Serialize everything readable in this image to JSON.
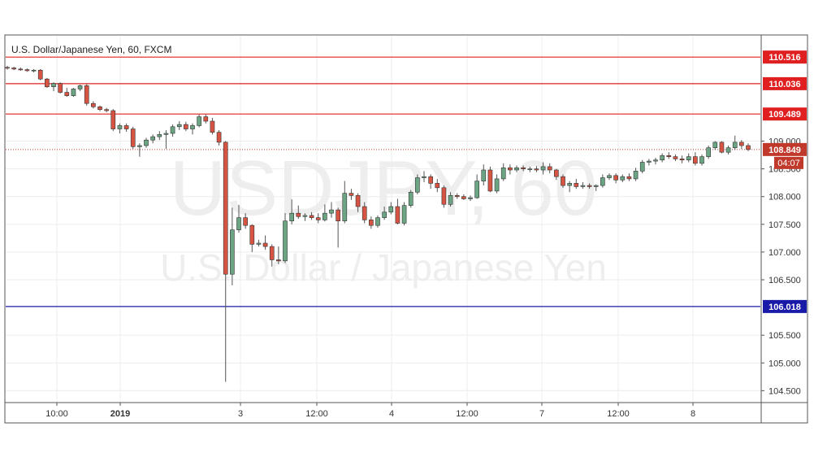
{
  "header": {
    "title": "U.S. Dollar/Japanese Yen, 60, FXCM"
  },
  "watermark": {
    "symbol": "USDJPY, 60",
    "name": "U.S. Dollar / Japanese Yen"
  },
  "colors": {
    "up_candle": "#6ba583",
    "down_candle": "#d75442",
    "wick": "#555555",
    "resistance_line": "#e02020",
    "support_line": "#1a1aa8",
    "price_line": "#c0392b",
    "grid": "#ececec"
  },
  "price_scale": {
    "ticks": [
      "109.000",
      "108.500",
      "108.000",
      "107.500",
      "107.000",
      "106.500",
      "105.500",
      "105.000",
      "104.500"
    ]
  },
  "time_scale": {
    "labels": [
      "10:00",
      "2019",
      "3",
      "12:00",
      "4",
      "12:00",
      "7",
      "12:00",
      "8"
    ]
  },
  "price_tags": {
    "levels": [
      "110.516",
      "110.036",
      "109.489",
      "106.018"
    ],
    "last_price": "108.849",
    "countdown": "04:07"
  },
  "chart_data": {
    "type": "candlestick",
    "title": "U.S. Dollar/Japanese Yen, 60, FXCM",
    "symbol": "USDJPY",
    "timeframe": "60",
    "ylim": [
      104.3,
      110.9
    ],
    "x_ticks": [
      "10:00",
      "2019",
      "3",
      "12:00",
      "4",
      "12:00",
      "7",
      "12:00",
      "8"
    ],
    "y_ticks": [
      109.0,
      108.5,
      108.0,
      107.5,
      107.0,
      106.5,
      105.5,
      105.0,
      104.5
    ],
    "horizontal_levels": [
      {
        "value": 110.516,
        "kind": "resistance"
      },
      {
        "value": 110.036,
        "kind": "resistance"
      },
      {
        "value": 109.489,
        "kind": "resistance"
      },
      {
        "value": 106.018,
        "kind": "support"
      }
    ],
    "last_price": 108.849,
    "candles": [
      [
        110.33,
        110.36,
        110.29,
        110.32
      ],
      [
        110.32,
        110.34,
        110.28,
        110.3
      ],
      [
        110.3,
        110.33,
        110.27,
        110.29
      ],
      [
        110.29,
        110.31,
        110.25,
        110.27
      ],
      [
        110.27,
        110.3,
        110.24,
        110.28
      ],
      [
        110.28,
        110.3,
        110.1,
        110.12
      ],
      [
        110.12,
        110.14,
        109.96,
        109.98
      ],
      [
        109.98,
        110.06,
        109.9,
        110.04
      ],
      [
        110.04,
        110.06,
        109.86,
        109.88
      ],
      [
        109.88,
        109.96,
        109.8,
        109.82
      ],
      [
        109.82,
        109.96,
        109.8,
        109.94
      ],
      [
        109.94,
        110.02,
        109.9,
        110.0
      ],
      [
        110.0,
        110.03,
        109.64,
        109.68
      ],
      [
        109.68,
        109.72,
        109.59,
        109.62
      ],
      [
        109.62,
        109.64,
        109.54,
        109.57
      ],
      [
        109.57,
        109.6,
        109.52,
        109.55
      ],
      [
        109.55,
        109.58,
        109.18,
        109.22
      ],
      [
        109.22,
        109.32,
        109.14,
        109.28
      ],
      [
        109.28,
        109.32,
        109.17,
        109.22
      ],
      [
        109.22,
        109.26,
        108.86,
        108.9
      ],
      [
        108.9,
        108.96,
        108.72,
        108.92
      ],
      [
        108.92,
        109.06,
        108.88,
        109.02
      ],
      [
        109.02,
        109.12,
        108.96,
        109.08
      ],
      [
        109.08,
        109.18,
        109.02,
        109.12
      ],
      [
        109.12,
        109.2,
        108.86,
        109.14
      ],
      [
        109.14,
        109.3,
        109.08,
        109.26
      ],
      [
        109.26,
        109.36,
        109.2,
        109.3
      ],
      [
        109.3,
        109.35,
        109.18,
        109.22
      ],
      [
        109.22,
        109.32,
        109.12,
        109.28
      ],
      [
        109.28,
        109.48,
        109.25,
        109.44
      ],
      [
        109.44,
        109.48,
        109.32,
        109.36
      ],
      [
        109.36,
        109.42,
        109.12,
        109.16
      ],
      [
        109.16,
        109.2,
        108.92,
        108.98
      ],
      [
        108.98,
        109.0,
        104.66,
        106.6
      ],
      [
        106.6,
        107.8,
        106.4,
        107.4
      ],
      [
        107.4,
        107.85,
        107.35,
        107.62
      ],
      [
        107.62,
        107.7,
        107.42,
        107.48
      ],
      [
        107.48,
        107.5,
        107.0,
        107.14
      ],
      [
        107.14,
        107.22,
        107.1,
        107.16
      ],
      [
        107.16,
        107.3,
        107.04,
        107.1
      ],
      [
        107.1,
        107.14,
        106.74,
        106.86
      ],
      [
        106.86,
        107.1,
        106.78,
        106.84
      ],
      [
        106.84,
        107.7,
        106.8,
        107.56
      ],
      [
        107.56,
        107.95,
        107.5,
        107.7
      ],
      [
        107.7,
        107.84,
        107.6,
        107.64
      ],
      [
        107.64,
        107.7,
        107.56,
        107.66
      ],
      [
        107.66,
        107.72,
        107.58,
        107.62
      ],
      [
        107.62,
        107.7,
        107.52,
        107.58
      ],
      [
        107.58,
        107.86,
        107.55,
        107.7
      ],
      [
        107.7,
        107.9,
        107.62,
        107.76
      ],
      [
        107.76,
        107.8,
        107.08,
        107.56
      ],
      [
        107.56,
        108.28,
        107.52,
        108.06
      ],
      [
        108.06,
        108.14,
        107.94,
        108.02
      ],
      [
        108.02,
        108.06,
        107.72,
        107.82
      ],
      [
        107.82,
        107.9,
        107.52,
        107.58
      ],
      [
        107.58,
        107.64,
        107.42,
        107.48
      ],
      [
        107.48,
        107.66,
        107.44,
        107.62
      ],
      [
        107.62,
        107.82,
        107.58,
        107.72
      ],
      [
        107.72,
        107.9,
        107.68,
        107.82
      ],
      [
        107.82,
        107.96,
        107.5,
        107.52
      ],
      [
        107.52,
        107.9,
        107.48,
        107.84
      ],
      [
        107.84,
        108.12,
        107.8,
        108.08
      ],
      [
        108.08,
        108.4,
        108.04,
        108.34
      ],
      [
        108.34,
        108.46,
        108.26,
        108.36
      ],
      [
        108.36,
        108.4,
        108.14,
        108.24
      ],
      [
        108.24,
        108.32,
        108.08,
        108.16
      ],
      [
        108.16,
        108.2,
        107.8,
        107.86
      ],
      [
        107.86,
        108.08,
        107.82,
        108.02
      ],
      [
        108.02,
        108.06,
        107.96,
        108.0
      ],
      [
        108.0,
        108.04,
        107.94,
        107.96
      ],
      [
        107.96,
        108.02,
        107.92,
        107.98
      ],
      [
        107.98,
        108.4,
        107.96,
        108.28
      ],
      [
        108.28,
        108.58,
        108.2,
        108.48
      ],
      [
        108.48,
        108.54,
        108.08,
        108.1
      ],
      [
        108.1,
        108.4,
        108.06,
        108.32
      ],
      [
        108.32,
        108.6,
        108.28,
        108.52
      ],
      [
        108.52,
        108.58,
        108.4,
        108.48
      ],
      [
        108.48,
        108.56,
        108.44,
        108.52
      ],
      [
        108.52,
        108.56,
        108.46,
        108.5
      ],
      [
        108.5,
        108.54,
        108.44,
        108.5
      ],
      [
        108.5,
        108.55,
        108.44,
        108.48
      ],
      [
        108.48,
        108.62,
        108.4,
        108.54
      ],
      [
        108.54,
        108.6,
        108.42,
        108.48
      ],
      [
        108.48,
        108.5,
        108.3,
        108.36
      ],
      [
        108.36,
        108.4,
        108.16,
        108.2
      ],
      [
        108.2,
        108.28,
        108.08,
        108.24
      ],
      [
        108.24,
        108.32,
        108.14,
        108.18
      ],
      [
        108.18,
        108.26,
        108.14,
        108.2
      ],
      [
        108.2,
        108.24,
        108.14,
        108.18
      ],
      [
        108.18,
        108.22,
        108.1,
        108.2
      ],
      [
        108.2,
        108.4,
        108.16,
        108.34
      ],
      [
        108.34,
        108.42,
        108.3,
        108.38
      ],
      [
        108.38,
        108.42,
        108.24,
        108.3
      ],
      [
        108.3,
        108.4,
        108.26,
        108.36
      ],
      [
        108.36,
        108.42,
        108.28,
        108.32
      ],
      [
        108.32,
        108.52,
        108.28,
        108.46
      ],
      [
        108.46,
        108.66,
        108.42,
        108.62
      ],
      [
        108.62,
        108.68,
        108.56,
        108.64
      ],
      [
        108.64,
        108.7,
        108.58,
        108.66
      ],
      [
        108.66,
        108.78,
        108.62,
        108.74
      ],
      [
        108.74,
        108.8,
        108.68,
        108.72
      ],
      [
        108.72,
        108.76,
        108.64,
        108.68
      ],
      [
        108.68,
        108.74,
        108.6,
        108.66
      ],
      [
        108.66,
        108.78,
        108.62,
        108.72
      ],
      [
        108.72,
        108.8,
        108.56,
        108.6
      ],
      [
        108.6,
        108.76,
        108.56,
        108.72
      ],
      [
        108.72,
        108.92,
        108.68,
        108.88
      ],
      [
        108.88,
        109.0,
        108.84,
        108.98
      ],
      [
        108.98,
        109.0,
        108.78,
        108.8
      ],
      [
        108.8,
        108.92,
        108.76,
        108.88
      ],
      [
        108.88,
        109.1,
        108.84,
        108.98
      ],
      [
        108.98,
        109.02,
        108.86,
        108.92
      ],
      [
        108.92,
        108.96,
        108.82,
        108.85
      ]
    ]
  }
}
